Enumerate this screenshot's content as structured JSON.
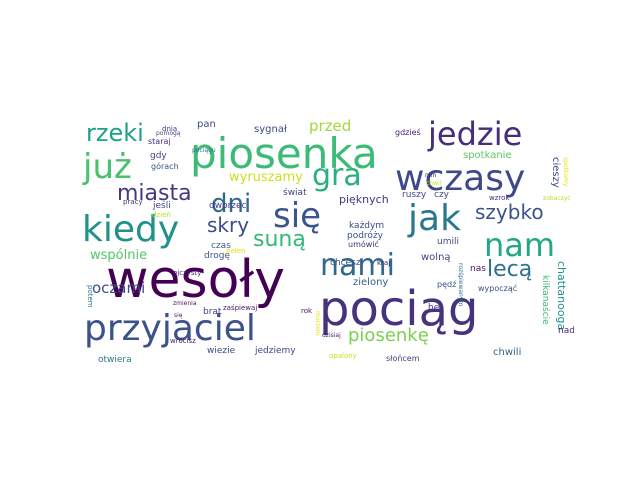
{
  "word_cloud": {
    "words": [
      {
        "text": "pociąg",
        "color": "#46337e"
      },
      {
        "text": "wesoły",
        "color": "#440154"
      },
      {
        "text": "piosenka",
        "color": "#3bbb75"
      },
      {
        "text": "przyjaciel",
        "color": "#3b528b"
      },
      {
        "text": "jak",
        "color": "#2a788e"
      },
      {
        "text": "jedzie",
        "color": "#472d7b"
      },
      {
        "text": "wczasy",
        "color": "#3e4989"
      },
      {
        "text": "kiedy",
        "color": "#21918c"
      },
      {
        "text": "się",
        "color": "#3a548c"
      },
      {
        "text": "już",
        "color": "#4ac16d"
      },
      {
        "text": "nam",
        "color": "#22a884"
      },
      {
        "text": "nami",
        "color": "#31688e"
      },
      {
        "text": "gra",
        "color": "#2ab07f"
      },
      {
        "text": "rzeki",
        "color": "#1fa088"
      },
      {
        "text": "miasta",
        "color": "#443983"
      },
      {
        "text": "dni",
        "color": "#30688e"
      },
      {
        "text": "skry",
        "color": "#3e4a89"
      },
      {
        "text": "suną",
        "color": "#35b779"
      },
      {
        "text": "szybko",
        "color": "#3b528b"
      },
      {
        "text": "lecą",
        "color": "#2c728e"
      },
      {
        "text": "oczami",
        "color": "#3e4c8a"
      },
      {
        "text": "piosenkę",
        "color": "#7ad151"
      },
      {
        "text": "wspólnie",
        "color": "#52c569"
      },
      {
        "text": "wyruszamy",
        "color": "#cddf1c"
      },
      {
        "text": "przed",
        "color": "#a2da37"
      },
      {
        "text": "sygnał",
        "color": "#3f4788"
      },
      {
        "text": "pan",
        "color": "#3e4a89"
      },
      {
        "text": "dnia",
        "color": "#453781"
      },
      {
        "text": "gdzieś",
        "color": "#481d6f"
      },
      {
        "text": "spotkanie",
        "color": "#5ec962"
      },
      {
        "text": "cieszy",
        "color": "#404688"
      },
      {
        "text": "spotkamy",
        "color": "#e5e419"
      },
      {
        "text": "pięknych",
        "color": "#46317e"
      },
      {
        "text": "świat",
        "color": "#414287"
      },
      {
        "text": "ruszy",
        "color": "#3f4788"
      },
      {
        "text": "czy",
        "color": "#3e4a89"
      },
      {
        "text": "wzrok",
        "color": "#472e7c"
      },
      {
        "text": "zobaczyć",
        "color": "#b5de2b"
      },
      {
        "text": "kilkanaście",
        "color": "#3dbc74"
      },
      {
        "text": "chattanooga",
        "color": "#20928c"
      },
      {
        "text": "nad",
        "color": "#482475"
      },
      {
        "text": "chwili",
        "color": "#33628d"
      },
      {
        "text": "wypocząć",
        "color": "#3e4c8a"
      },
      {
        "text": "rozśpiewanym",
        "color": "#2f6c8e"
      },
      {
        "text": "nas",
        "color": "#471365"
      },
      {
        "text": "umili",
        "color": "#3e4989"
      },
      {
        "text": "wolną",
        "color": "#414487"
      },
      {
        "text": "zielony",
        "color": "#33628d"
      },
      {
        "text": "hej",
        "color": "#46327e"
      },
      {
        "text": "pędź",
        "color": "#3a548c"
      },
      {
        "text": "kraj",
        "color": "#481a6c"
      },
      {
        "text": "chcesz",
        "color": "#3e4a89"
      },
      {
        "text": "umówić",
        "color": "#46307e"
      },
      {
        "text": "każdym",
        "color": "#404588"
      },
      {
        "text": "podróży",
        "color": "#3c508b"
      },
      {
        "text": "czas",
        "color": "#355f8d"
      },
      {
        "text": "drogę",
        "color": "#3b528b"
      },
      {
        "text": "ojczysty",
        "color": "#481769"
      },
      {
        "text": "pełen",
        "color": "#dde318"
      },
      {
        "text": "dworzec",
        "color": "#453882"
      },
      {
        "text": "jeśli",
        "color": "#3e4a89"
      },
      {
        "text": "dzień",
        "color": "#bddf26"
      },
      {
        "text": "pracy",
        "color": "#453581"
      },
      {
        "text": "górach",
        "color": "#3b528b"
      },
      {
        "text": "pociągu",
        "color": "#2c728e"
      },
      {
        "text": "wrócisz",
        "color": "#482173"
      },
      {
        "text": "gdy",
        "color": "#414487"
      },
      {
        "text": "staraj",
        "color": "#472f7d"
      },
      {
        "text": "pomogą",
        "color": "#3e4989"
      },
      {
        "text": "potem",
        "color": "#2a788e"
      },
      {
        "text": "zmienia",
        "color": "#471063"
      },
      {
        "text": "się",
        "color": "#481f70"
      },
      {
        "text": "zaśpiewaj",
        "color": "#481769"
      },
      {
        "text": "brat",
        "color": "#414487"
      },
      {
        "text": "rok",
        "color": "#471063"
      },
      {
        "text": "morzem",
        "color": "#e0e318"
      },
      {
        "text": "otwiera",
        "color": "#2a788e"
      },
      {
        "text": "wiezie",
        "color": "#3e4989"
      },
      {
        "text": "jedziemy",
        "color": "#414487"
      },
      {
        "text": "dzisiaj",
        "color": "#481b6d"
      },
      {
        "text": "opalony",
        "color": "#c5e021"
      },
      {
        "text": "słońcem",
        "color": "#453781"
      },
      {
        "text": "nim",
        "color": "#471063"
      },
      {
        "text": "chwil",
        "color": "#d8e219"
      }
    ]
  }
}
